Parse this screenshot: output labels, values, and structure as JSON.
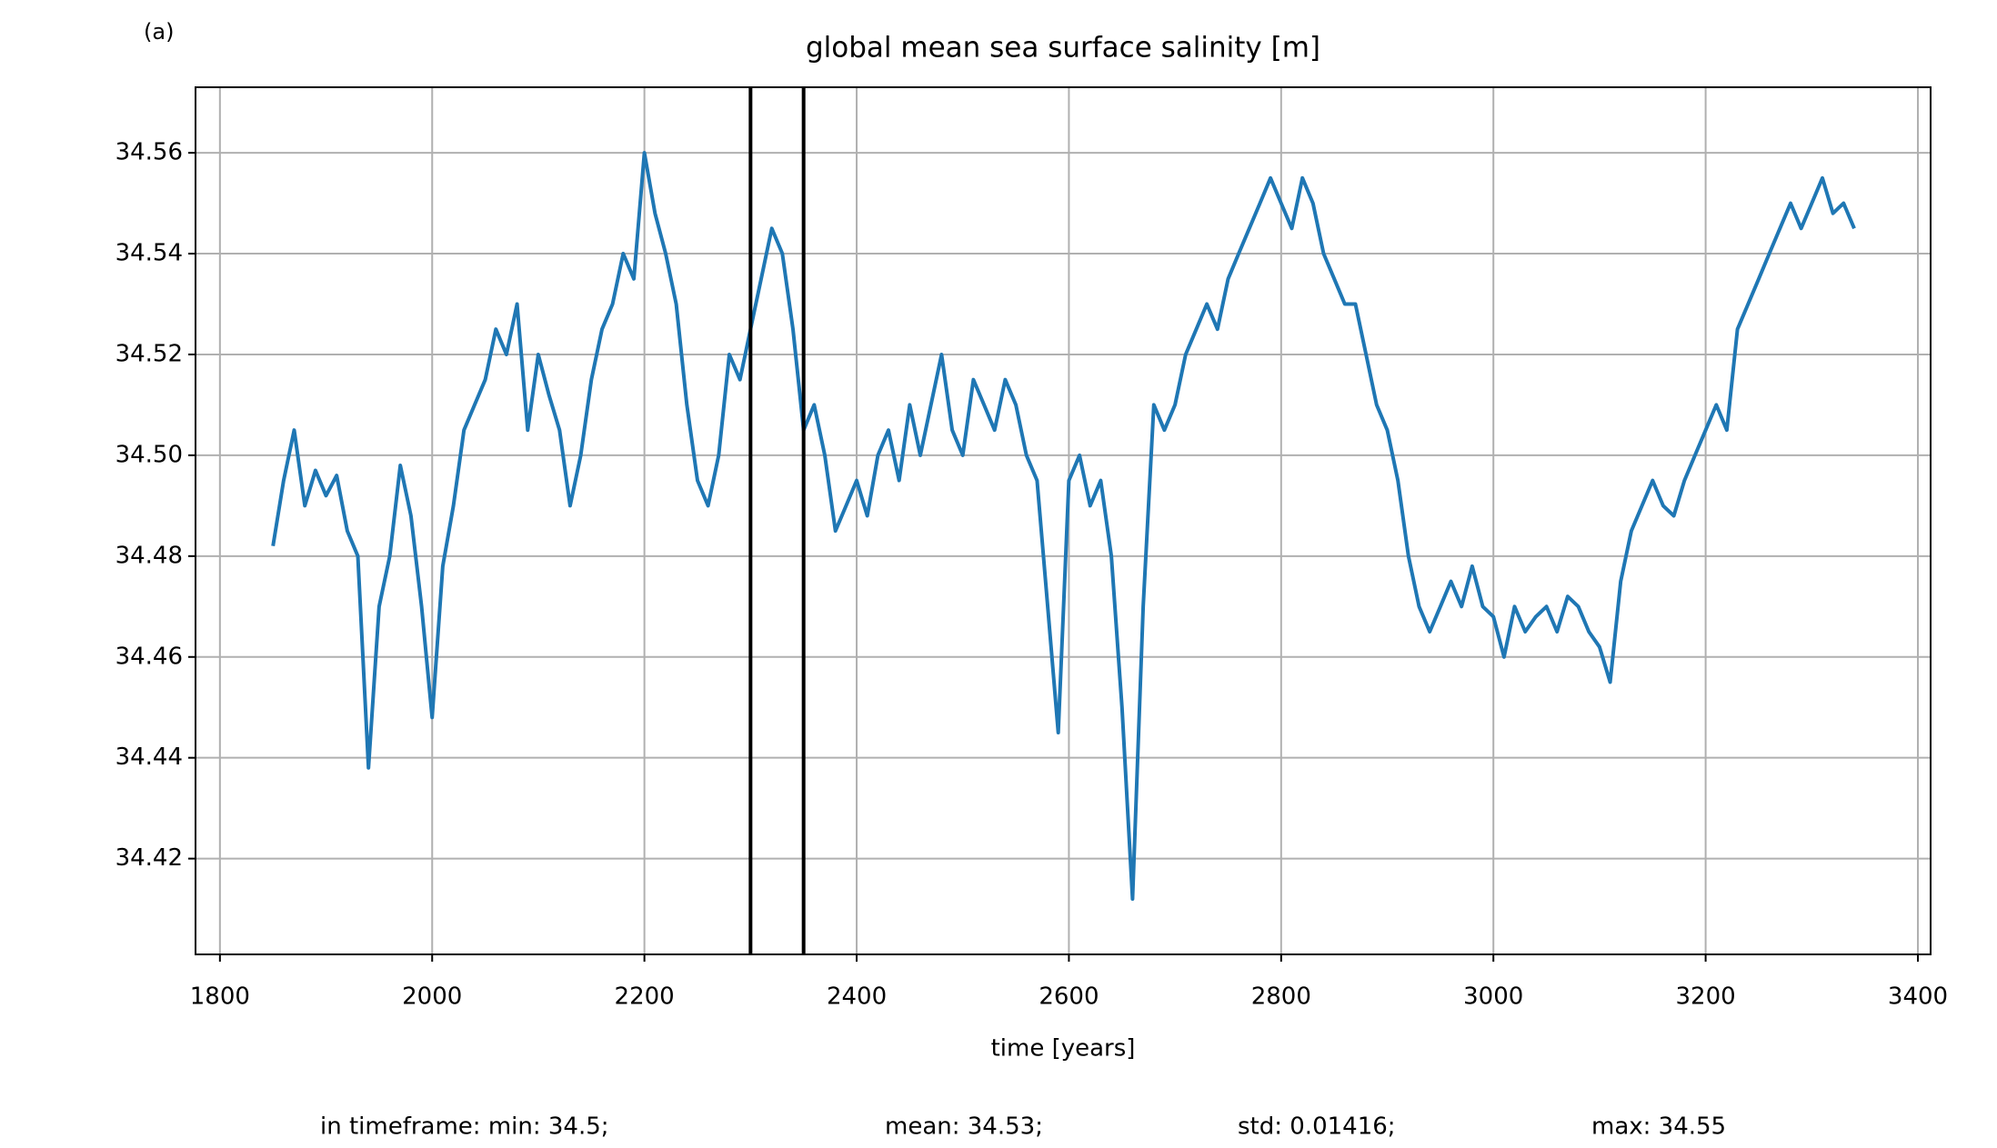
{
  "chart_data": {
    "type": "line",
    "annotation": "(a)",
    "title": "global mean sea surface salinity [m]",
    "xlabel": "time [years]",
    "footer": [
      "in timeframe: min: 34.5;",
      "mean: 34.53;",
      "std: 0.01416;",
      "max: 34.55"
    ],
    "xlim": [
      1777,
      3412
    ],
    "ylim": [
      34.401,
      34.573
    ],
    "xticks": [
      1800,
      2000,
      2200,
      2400,
      2600,
      2800,
      3000,
      3200,
      3400
    ],
    "yticks": [
      34.42,
      34.44,
      34.46,
      34.48,
      {
        "value": 34.5,
        "label": "34.50"
      },
      34.52,
      34.54,
      34.56
    ],
    "grid": true,
    "vlines": [
      2300,
      2350
    ],
    "vline_color": "#000000",
    "x": [
      1850,
      1860,
      1870,
      1880,
      1890,
      1900,
      1910,
      1920,
      1930,
      1940,
      1950,
      1960,
      1970,
      1980,
      1990,
      2000,
      2010,
      2020,
      2030,
      2040,
      2050,
      2060,
      2070,
      2080,
      2090,
      2100,
      2110,
      2120,
      2130,
      2140,
      2150,
      2160,
      2170,
      2180,
      2190,
      2200,
      2210,
      2220,
      2230,
      2240,
      2250,
      2260,
      2270,
      2280,
      2290,
      2300,
      2310,
      2320,
      2330,
      2340,
      2350,
      2360,
      2370,
      2380,
      2390,
      2400,
      2410,
      2420,
      2430,
      2440,
      2450,
      2460,
      2470,
      2480,
      2490,
      2500,
      2510,
      2520,
      2530,
      2540,
      2550,
      2560,
      2570,
      2580,
      2590,
      2600,
      2610,
      2620,
      2630,
      2640,
      2650,
      2660,
      2670,
      2680,
      2690,
      2700,
      2710,
      2720,
      2730,
      2740,
      2750,
      2760,
      2770,
      2780,
      2790,
      2800,
      2810,
      2820,
      2830,
      2840,
      2850,
      2860,
      2870,
      2880,
      2890,
      2900,
      2910,
      2920,
      2930,
      2940,
      2950,
      2960,
      2970,
      2980,
      2990,
      3000,
      3010,
      3020,
      3030,
      3040,
      3050,
      3060,
      3070,
      3080,
      3090,
      3100,
      3110,
      3120,
      3130,
      3140,
      3150,
      3160,
      3170,
      3180,
      3190,
      3200,
      3210,
      3220,
      3230,
      3240,
      3250,
      3260,
      3270,
      3280,
      3290,
      3300,
      3310,
      3320,
      3330,
      3340
    ],
    "series": [
      {
        "name": "salinity",
        "color": "#1f77b4",
        "values": [
          34.482,
          34.495,
          34.505,
          34.49,
          34.497,
          34.492,
          34.496,
          34.485,
          34.48,
          34.438,
          34.47,
          34.48,
          34.498,
          34.488,
          34.47,
          34.448,
          34.478,
          34.49,
          34.505,
          34.51,
          34.515,
          34.525,
          34.52,
          34.53,
          34.505,
          34.52,
          34.512,
          34.505,
          34.49,
          34.5,
          34.515,
          34.525,
          34.53,
          34.54,
          34.535,
          34.56,
          34.548,
          34.54,
          34.53,
          34.51,
          34.495,
          34.49,
          34.5,
          34.52,
          34.515,
          34.525,
          34.535,
          34.545,
          34.54,
          34.525,
          34.505,
          34.51,
          34.5,
          34.485,
          34.49,
          34.495,
          34.488,
          34.5,
          34.505,
          34.495,
          34.51,
          34.5,
          34.51,
          34.52,
          34.505,
          34.5,
          34.515,
          34.51,
          34.505,
          34.515,
          34.51,
          34.5,
          34.495,
          34.47,
          34.445,
          34.495,
          34.5,
          34.49,
          34.495,
          34.48,
          34.45,
          34.412,
          34.47,
          34.51,
          34.505,
          34.51,
          34.52,
          34.525,
          34.53,
          34.525,
          34.535,
          34.54,
          34.545,
          34.55,
          34.555,
          34.55,
          34.545,
          34.555,
          34.55,
          34.54,
          34.535,
          34.53,
          34.53,
          34.52,
          34.51,
          34.505,
          34.495,
          34.48,
          34.47,
          34.465,
          34.47,
          34.475,
          34.47,
          34.478,
          34.47,
          34.468,
          34.46,
          34.47,
          34.465,
          34.468,
          34.47,
          34.465,
          34.472,
          34.47,
          34.465,
          34.462,
          34.455,
          34.475,
          34.485,
          34.49,
          34.495,
          34.49,
          34.488,
          34.495,
          34.5,
          34.505,
          34.51,
          34.505,
          34.525,
          34.53,
          34.535,
          34.54,
          34.545,
          34.55,
          34.545,
          34.55,
          34.555,
          34.548,
          34.55,
          34.545
        ]
      }
    ]
  }
}
